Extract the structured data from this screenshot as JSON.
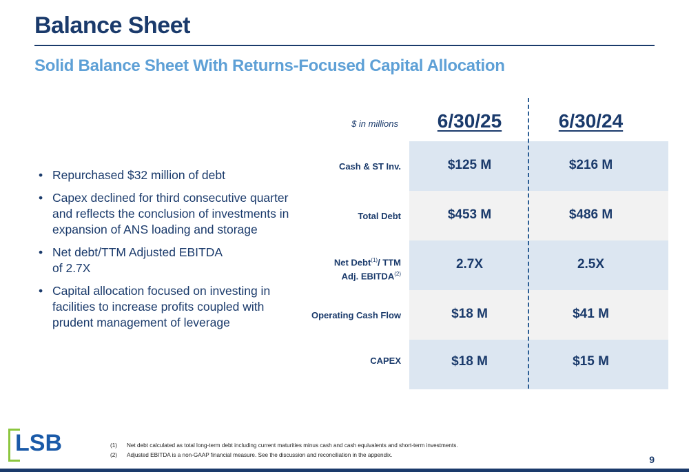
{
  "header": {
    "title": "Balance Sheet",
    "subtitle": "Solid Balance Sheet With Returns-Focused Capital Allocation"
  },
  "bullets": [
    "Repurchased $32 million of debt",
    "Capex declined for third consecutive quarter and reflects the conclusion of investments in expansion of ANS loading and storage",
    "Net debt/TTM Adjusted EBITDA of 2.7X",
    "Capital allocation focused on investing in facilities to increase profits coupled with prudent management of leverage"
  ],
  "table": {
    "units_label": "$ in millions",
    "columns": [
      "6/30/25",
      "6/30/24"
    ],
    "rows": [
      {
        "label": "Cash & ST Inv.",
        "values": [
          "$125 M",
          "$216 M"
        ]
      },
      {
        "label": "Total Debt",
        "values": [
          "$453 M",
          "$486 M"
        ]
      },
      {
        "label_part1": "Net Debt",
        "label_sup1": "(1)",
        "label_part2": "/ TTM",
        "label_line2": "Adj. EBITDA",
        "label_sup2": "(2)",
        "values": [
          "2.7X",
          "2.5X"
        ]
      },
      {
        "label": "Operating Cash Flow",
        "values": [
          "$18 M",
          "$41 M"
        ]
      },
      {
        "label": "CAPEX",
        "values": [
          "$18 M",
          "$15 M"
        ]
      }
    ]
  },
  "footer": {
    "logo_text": "LSB",
    "footnotes": [
      {
        "num": "(1)",
        "text": "Net debt calculated as total long-term debt including current maturities minus cash and cash equivalents and short-term investments."
      },
      {
        "num": "(2)",
        "text": "Adjusted EBITDA is a non-GAAP financial measure.  See the discussion and reconciliation in the appendix."
      }
    ],
    "page_number": "9"
  },
  "colors": {
    "navy": "#1a3a6b",
    "light_blue": "#5ea0d6",
    "row_shade": "#dce6f1",
    "row_plain": "#f2f2f2",
    "logo_green": "#8cc63f",
    "logo_blue": "#1a5aa8"
  }
}
